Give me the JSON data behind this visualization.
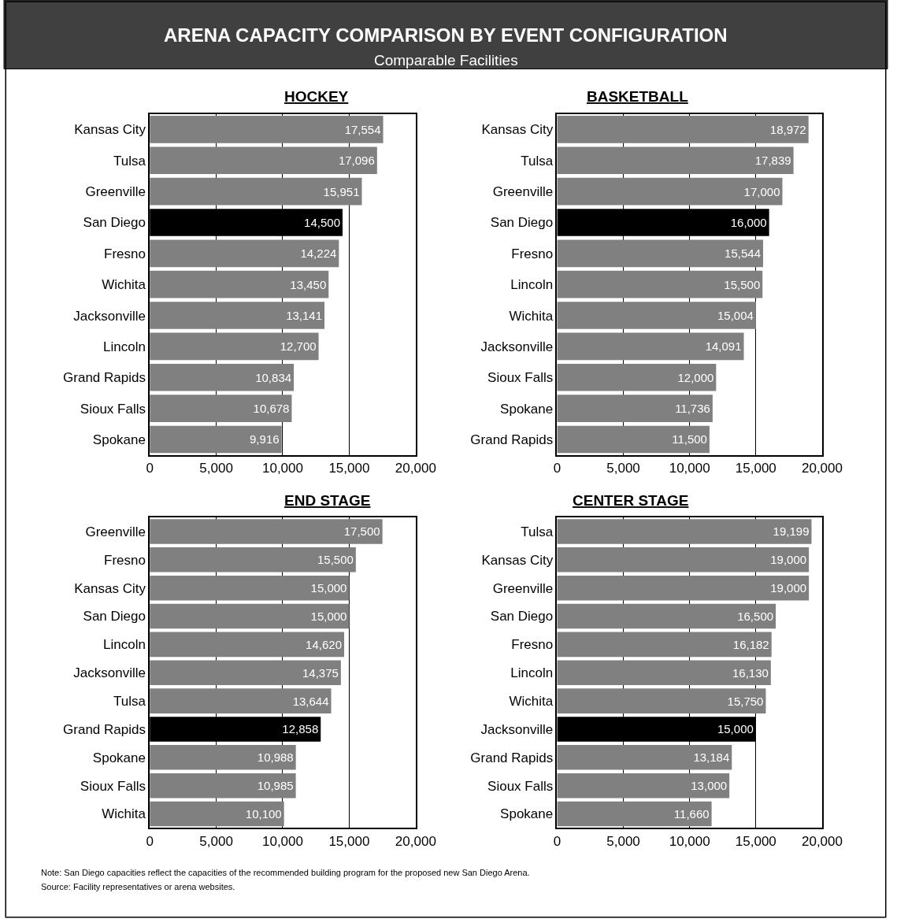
{
  "chart_data": [
    {
      "type": "other",
      "title": "ARENA CAPACITY COMPARISON BY EVENT CONFIGURATION",
      "subtitle": "Comparable Facilities",
      "annotations": [
        "Note: San Diego capacities reflect the capacities of the recommended building program for the proposed new San Diego Arena.",
        "Source: Facility representatives or arena websites."
      ]
    },
    {
      "type": "bar",
      "orientation": "horizontal",
      "title": "HOCKEY",
      "categories": [
        "Kansas City",
        "Tulsa",
        "Greenville",
        "San Diego",
        "Fresno",
        "Wichita",
        "Jacksonville",
        "Lincoln",
        "Grand Rapids",
        "Sioux Falls",
        "Spokane"
      ],
      "values": [
        17554,
        17096,
        15951,
        14500,
        14224,
        13450,
        13141,
        12700,
        10834,
        10678,
        9916
      ],
      "value_labels": [
        "17,554",
        "17,096",
        "15,951",
        "14,500",
        "14,224",
        "13,450",
        "13,141",
        "12,700",
        "10,834",
        "10,678",
        "9,916"
      ],
      "colors": [
        "#808080",
        "#808080",
        "#808080",
        "#000000",
        "#808080",
        "#808080",
        "#808080",
        "#808080",
        "#808080",
        "#808080",
        "#808080"
      ],
      "xlim": [
        0,
        20000
      ],
      "xticks": [
        {
          "value": 0,
          "label": "0"
        },
        {
          "value": 5000,
          "label": "5,000"
        },
        {
          "value": 10000,
          "label": "10,000"
        },
        {
          "value": 15000,
          "label": "15,000"
        },
        {
          "value": 20000,
          "label": "20,000"
        }
      ],
      "grid": "x"
    },
    {
      "type": "bar",
      "orientation": "horizontal",
      "title": "BASKETBALL",
      "categories": [
        "Kansas City",
        "Tulsa",
        "Greenville",
        "San Diego",
        "Fresno",
        "Lincoln",
        "Wichita",
        "Jacksonville",
        "Sioux Falls",
        "Spokane",
        "Grand Rapids"
      ],
      "values": [
        18972,
        17839,
        17000,
        16000,
        15544,
        15500,
        15004,
        14091,
        12000,
        11736,
        11500
      ],
      "value_labels": [
        "18,972",
        "17,839",
        "17,000",
        "16,000",
        "15,544",
        "15,500",
        "15,004",
        "14,091",
        "12,000",
        "11,736",
        "11,500"
      ],
      "colors": [
        "#808080",
        "#808080",
        "#808080",
        "#000000",
        "#808080",
        "#808080",
        "#808080",
        "#808080",
        "#808080",
        "#808080",
        "#808080"
      ],
      "xlim": [
        0,
        20000
      ],
      "xticks": [
        {
          "value": 0,
          "label": "0"
        },
        {
          "value": 5000,
          "label": "5,000"
        },
        {
          "value": 10000,
          "label": "10,000"
        },
        {
          "value": 15000,
          "label": "15,000"
        },
        {
          "value": 20000,
          "label": "20,000"
        }
      ],
      "grid": "x"
    },
    {
      "type": "bar",
      "orientation": "horizontal",
      "title": "END STAGE",
      "categories": [
        "Greenville",
        "Fresno",
        "Kansas City",
        "San Diego",
        "Lincoln",
        "Jacksonville",
        "Tulsa",
        "Grand Rapids",
        "Spokane",
        "Sioux Falls",
        "Wichita"
      ],
      "values": [
        17500,
        15500,
        15000,
        15000,
        14620,
        14375,
        13644,
        12858,
        10988,
        10985,
        10100
      ],
      "value_labels": [
        "17,500",
        "15,500",
        "15,000",
        "15,000",
        "14,620",
        "14,375",
        "13,644",
        "12,858",
        "10,988",
        "10,985",
        "10,100"
      ],
      "colors": [
        "#808080",
        "#808080",
        "#808080",
        "#808080",
        "#808080",
        "#808080",
        "#808080",
        "#000000",
        "#808080",
        "#808080",
        "#808080"
      ],
      "xlim": [
        0,
        20000
      ],
      "xticks": [
        {
          "value": 0,
          "label": "0"
        },
        {
          "value": 5000,
          "label": "5,000"
        },
        {
          "value": 10000,
          "label": "10,000"
        },
        {
          "value": 15000,
          "label": "15,000"
        },
        {
          "value": 20000,
          "label": "20,000"
        }
      ],
      "grid": "x"
    },
    {
      "type": "bar",
      "orientation": "horizontal",
      "title": "CENTER STAGE",
      "categories": [
        "Tulsa",
        "Kansas City",
        "Greenville",
        "San Diego",
        "Fresno",
        "Lincoln",
        "Wichita",
        "Jacksonville",
        "Grand Rapids",
        "Sioux Falls",
        "Spokane"
      ],
      "values": [
        19199,
        19000,
        19000,
        16500,
        16182,
        16130,
        15750,
        15000,
        13184,
        13000,
        11660
      ],
      "value_labels": [
        "19,199",
        "19,000",
        "19,000",
        "16,500",
        "16,182",
        "16,130",
        "15,750",
        "15,000",
        "13,184",
        "13,000",
        "11,660"
      ],
      "colors": [
        "#808080",
        "#808080",
        "#808080",
        "#808080",
        "#808080",
        "#808080",
        "#808080",
        "#000000",
        "#808080",
        "#808080",
        "#808080"
      ],
      "xlim": [
        0,
        20000
      ],
      "xticks": [
        {
          "value": 0,
          "label": "0"
        },
        {
          "value": 5000,
          "label": "5,000"
        },
        {
          "value": 10000,
          "label": "10,000"
        },
        {
          "value": 15000,
          "label": "15,000"
        },
        {
          "value": 20000,
          "label": "20,000"
        }
      ],
      "grid": "x"
    }
  ]
}
